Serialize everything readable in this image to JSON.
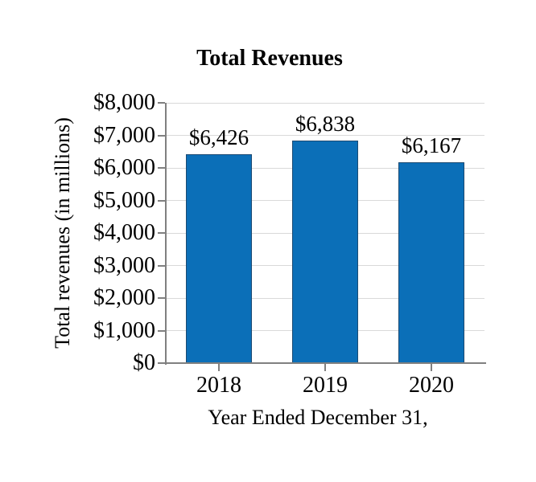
{
  "chart_data": {
    "type": "bar",
    "title": "Total Revenues",
    "xlabel": "Year Ended December 31,",
    "ylabel": "Total revenues (in millions)",
    "categories": [
      "2018",
      "2019",
      "2020"
    ],
    "values": [
      6426,
      6838,
      6167
    ],
    "value_labels": [
      "$6,426",
      "$6,838",
      "$6,167"
    ],
    "ylim": [
      0,
      8000
    ],
    "ytick_interval": 1000,
    "ytick_labels": [
      "$0",
      "$1,000",
      "$2,000",
      "$3,000",
      "$4,000",
      "$5,000",
      "$6,000",
      "$7,000",
      "$8,000"
    ],
    "grid": true,
    "legend": "none",
    "colors": {
      "bar_fill": "#0b6fb8",
      "bar_border": "#1c4a72",
      "axis_line": "#808080",
      "gridline": "#d9d9d9",
      "text": "#000000",
      "background": "#ffffff"
    }
  }
}
